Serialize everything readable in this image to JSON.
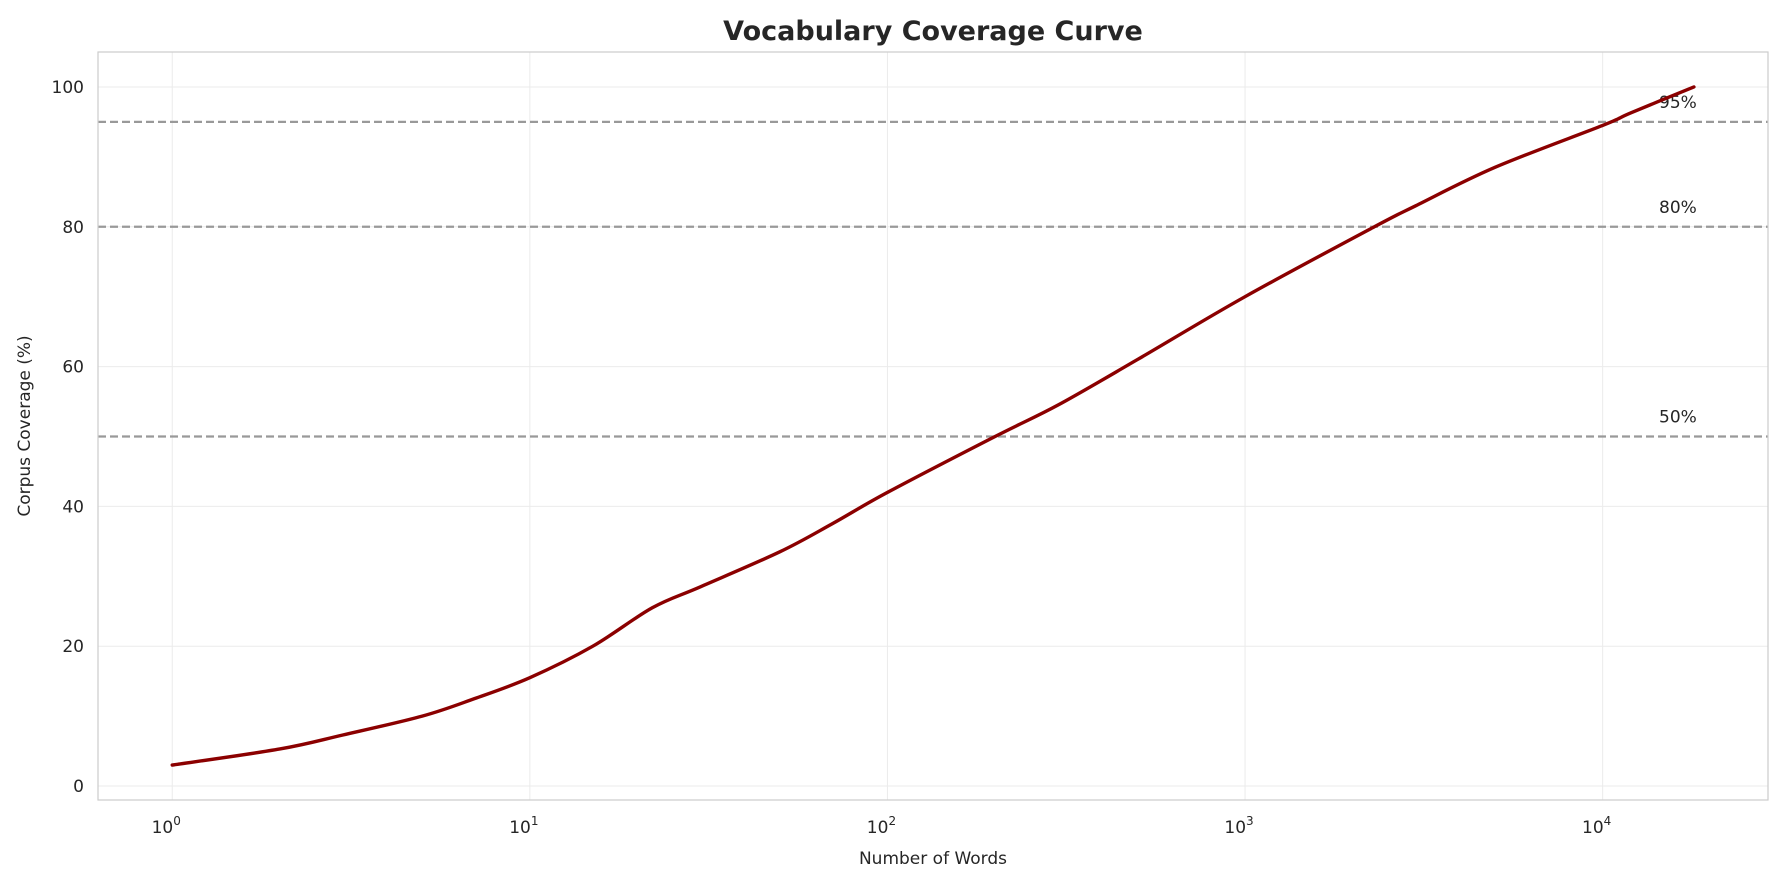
{
  "chart_data": {
    "type": "line",
    "title": "Vocabulary Coverage Curve",
    "xlabel": "Number of Words",
    "ylabel": "Corpus Coverage (%)",
    "xscale": "log",
    "xlim": [
      0.62,
      29000
    ],
    "ylim": [
      -2,
      105
    ],
    "grid": true,
    "x_ticks": [
      {
        "value": 1,
        "base": "10",
        "exp": "0"
      },
      {
        "value": 10,
        "base": "10",
        "exp": "1"
      },
      {
        "value": 100,
        "base": "10",
        "exp": "2"
      },
      {
        "value": 1000,
        "base": "10",
        "exp": "3"
      },
      {
        "value": 10000,
        "base": "10",
        "exp": "4"
      }
    ],
    "y_ticks": [
      0,
      20,
      40,
      60,
      80,
      100
    ],
    "series": [
      {
        "color": "#8b0000",
        "x": [
          1,
          2,
          3,
          5,
          7,
          10,
          15,
          22,
          30,
          50,
          70,
          100,
          200,
          300,
          500,
          1000,
          2300,
          3000,
          5000,
          10000,
          12000,
          18000
        ],
        "y": [
          3,
          5.3,
          7.3,
          10,
          12.5,
          15.5,
          20,
          25.5,
          28.5,
          33.5,
          37.5,
          42,
          50,
          54.5,
          61,
          70,
          80,
          83,
          88.5,
          94.5,
          96.3,
          100
        ]
      }
    ],
    "reference_lines": [
      {
        "y": 50,
        "label": "50%",
        "color": "#999999"
      },
      {
        "y": 80,
        "label": "80%",
        "color": "#999999"
      },
      {
        "y": 95,
        "label": "95%",
        "color": "#999999"
      }
    ]
  }
}
